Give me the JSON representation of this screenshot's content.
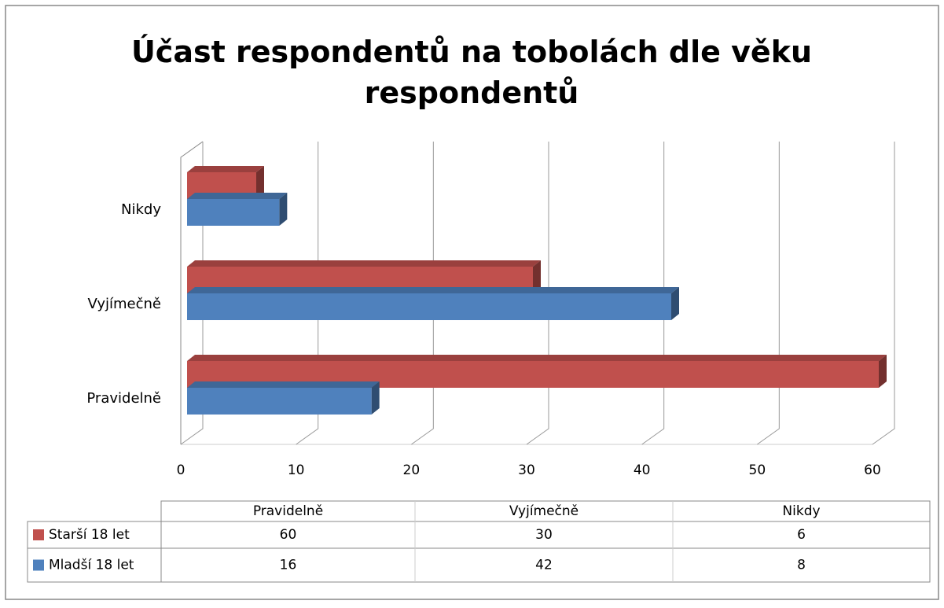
{
  "chart_data": {
    "type": "bar3d_horizontal",
    "title": "Účast respondentů na tobolách dle věku respondentů",
    "categories": [
      "Pravidelně",
      "Vyjímečně",
      "Nikdy"
    ],
    "series": [
      {
        "name": "Starší 18 let",
        "color": "#c0504d",
        "values": [
          60,
          30,
          6
        ]
      },
      {
        "name": "Mladší 18 let",
        "color": "#4f81bd",
        "values": [
          16,
          42,
          8
        ]
      }
    ],
    "xlim": [
      0,
      60
    ],
    "xticks": [
      0,
      10,
      20,
      30,
      40,
      50,
      60
    ],
    "grid": true,
    "data_table": true
  }
}
